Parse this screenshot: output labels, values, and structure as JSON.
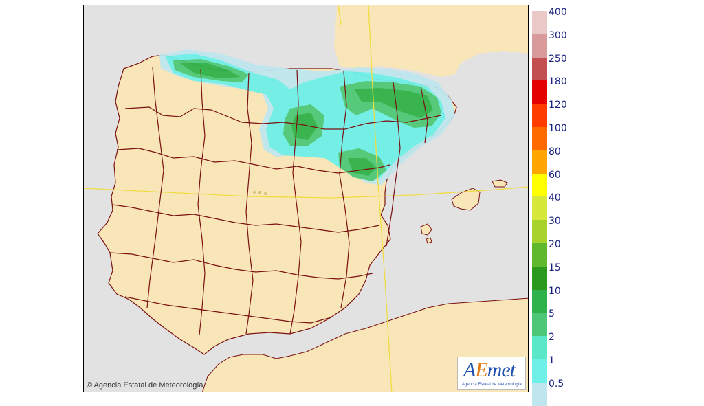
{
  "map": {
    "copyright": "Agencia Estatal de Meteorología",
    "logo": {
      "brand_a": "A",
      "brand_em": "E",
      "brand_b": "met",
      "subtitle": "Agencia Estatal de Meteorología"
    },
    "colors": {
      "sea": "#e2e2e2",
      "land": "#f8e6b8",
      "province_border": "#7a1010",
      "graticule": "#f0dc40"
    }
  },
  "legend": {
    "bins": [
      {
        "label": "400",
        "color": "#ebc8c8"
      },
      {
        "label": "300",
        "color": "#d89a9a"
      },
      {
        "label": "250",
        "color": "#c25050"
      },
      {
        "label": "180",
        "color": "#e50000"
      },
      {
        "label": "120",
        "color": "#ff3b00"
      },
      {
        "label": "100",
        "color": "#ff6a00"
      },
      {
        "label": "80",
        "color": "#ffa600"
      },
      {
        "label": "60",
        "color": "#ffff00"
      },
      {
        "label": "40",
        "color": "#d6e83a"
      },
      {
        "label": "30",
        "color": "#a8d32c"
      },
      {
        "label": "20",
        "color": "#60b82c"
      },
      {
        "label": "15",
        "color": "#2b9a1c"
      },
      {
        "label": "10",
        "color": "#30b24a"
      },
      {
        "label": "5",
        "color": "#4ec878"
      },
      {
        "label": "2",
        "color": "#5ae8c8"
      },
      {
        "label": "1",
        "color": "#6ef0e8"
      },
      {
        "label": "0.5",
        "color": "#bfe6ee"
      }
    ]
  }
}
